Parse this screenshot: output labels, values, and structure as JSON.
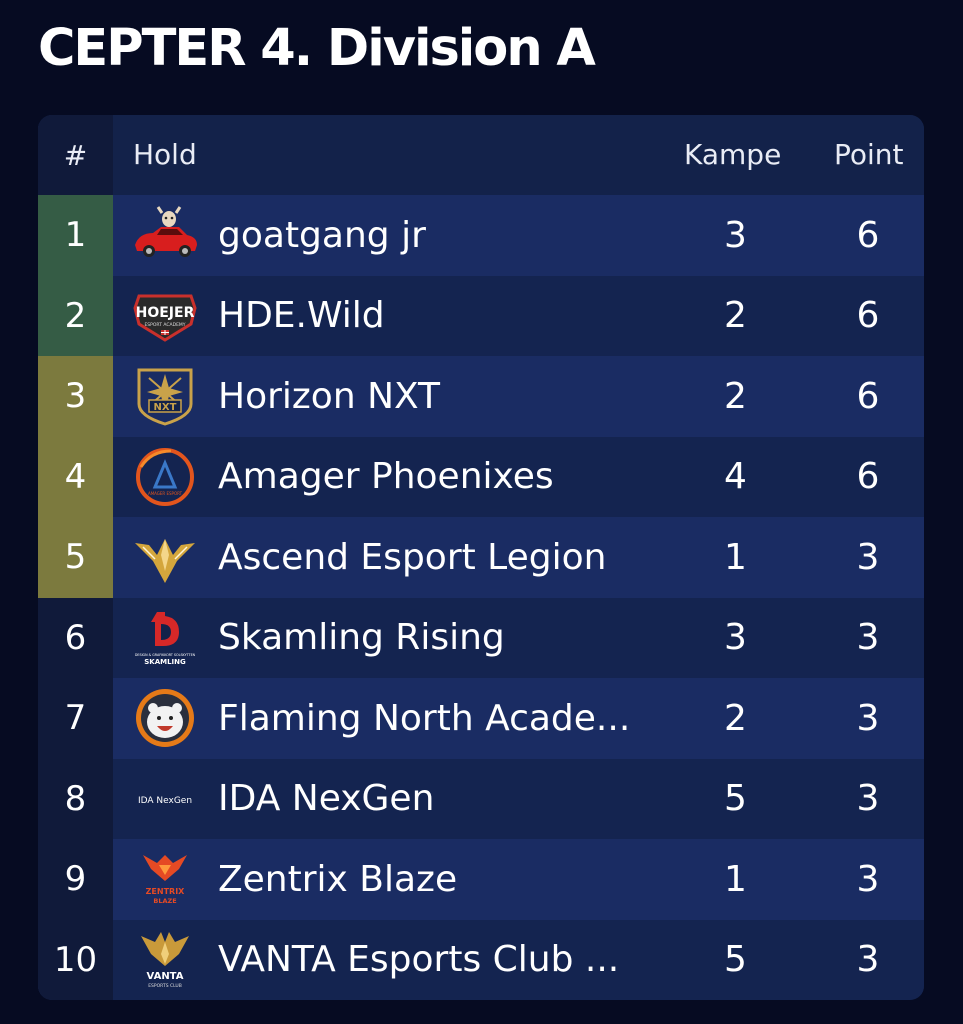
{
  "page": {
    "title": "CEPTER 4. Division A"
  },
  "table": {
    "headers": {
      "rank": "#",
      "team": "Hold",
      "matches": "Kampe",
      "points": "Point"
    },
    "rows": [
      {
        "rank": "1",
        "team": "goatgang jr",
        "matches": "3",
        "points": "6",
        "logo": "goat-car-logo",
        "zone": "green"
      },
      {
        "rank": "2",
        "team": "HDE.Wild",
        "matches": "2",
        "points": "6",
        "logo": "hoejer-logo",
        "zone": "green"
      },
      {
        "rank": "3",
        "team": "Horizon NXT",
        "matches": "2",
        "points": "6",
        "logo": "nxt-star-logo",
        "zone": "olive"
      },
      {
        "rank": "4",
        "team": "Amager Phoenixes",
        "matches": "4",
        "points": "6",
        "logo": "amager-ring-logo",
        "zone": "olive"
      },
      {
        "rank": "5",
        "team": "Ascend Esport Legion",
        "matches": "1",
        "points": "3",
        "logo": "ascend-wings-logo",
        "zone": "olive"
      },
      {
        "rank": "6",
        "team": "Skamling Rising",
        "matches": "3",
        "points": "3",
        "logo": "skamling-logo",
        "zone": "none"
      },
      {
        "rank": "7",
        "team": "Flaming North Acade...",
        "matches": "2",
        "points": "3",
        "logo": "polar-bear-logo",
        "zone": "none"
      },
      {
        "rank": "8",
        "team": "IDA NexGen",
        "matches": "5",
        "points": "3",
        "logo": "ida-nexgen-logo",
        "zone": "none"
      },
      {
        "rank": "9",
        "team": "Zentrix Blaze",
        "matches": "1",
        "points": "3",
        "logo": "zentrix-logo",
        "zone": "none"
      },
      {
        "rank": "10",
        "team": "VANTA Esports Club ...",
        "matches": "5",
        "points": "3",
        "logo": "vanta-phoenix-logo",
        "zone": "none"
      }
    ]
  },
  "logos": {
    "hoejer_text": "HOEJER",
    "hoejer_sub": "ESPORT ACADEMY",
    "nxt_text": "NXT",
    "amager_text": "AMAGER ESPORT",
    "skamling_text": "SKAMLING",
    "skamling_sub": "DESIGN & GRAFIKKORT SOLSKYTTEN",
    "ida_text": "IDA NexGen",
    "zentrix_text": "ZENTRIX",
    "zentrix_sub": "BLAZE",
    "vanta_text": "VANTA",
    "vanta_sub": "ESPORTS CLUB"
  },
  "colors": {
    "background": "#060b22",
    "row_even": "#1a2c63",
    "row_odd": "#142450",
    "rank_default": "#101a3a",
    "rank_green": "#355c45",
    "rank_olive": "#7c7a3e"
  }
}
